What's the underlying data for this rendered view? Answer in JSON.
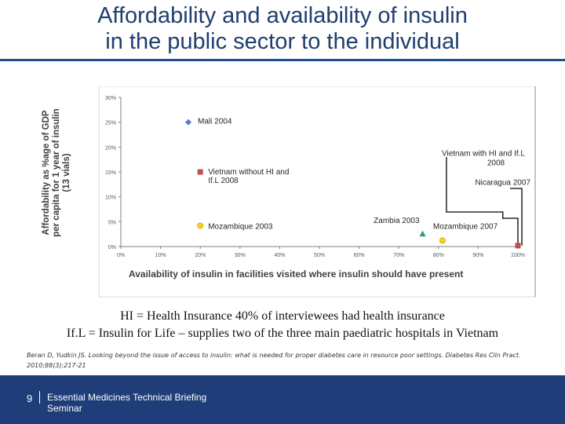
{
  "slide": {
    "title_line1": "Affordability and availability of insulin",
    "title_line2": "in the public sector to the individual",
    "note1": "HI = Health Insurance 40% of interviewees had health insurance",
    "note2": "If.L = Insulin for Life – supplies two of the three main paediatric hospitals in Vietnam",
    "citation_line1": "Beran D, Yudkin JS. Looking beyond the issue of access to insulin: what is needed for proper diabetes care in resource poor settings. Diabetes Res Clin Pract.",
    "citation_line2": "2010;88(3):217-21",
    "page_number": "9",
    "footer_line1": "Essential Medicines Technical Briefing",
    "footer_line2": "Seminar"
  },
  "colors": {
    "title": "#1f3f6e",
    "footer_bg": "#1f3d78",
    "mali": "#4f81bd",
    "vietnam_red": "#c0504d",
    "mozambique_yellow": "#ffd11a",
    "zambia_green": "#2e9e61"
  },
  "chart_data": {
    "type": "scatter",
    "title": "",
    "xlabel": "Availability of insulin in facilities visited where insulin should have present",
    "ylabel": [
      "Affordability as %age of GDP",
      "per capita for 1 year of insulin",
      "(13 vials)"
    ],
    "x_ticks": [
      "0%",
      "10%",
      "20%",
      "30%",
      "40%",
      "50%",
      "60%",
      "70%",
      "80%",
      "90%",
      "100%"
    ],
    "y_ticks": [
      "0%",
      "5%",
      "10%",
      "15%",
      "20%",
      "25%",
      "30%"
    ],
    "xlim": [
      0,
      100
    ],
    "ylim": [
      0,
      30
    ],
    "grid": false,
    "points": [
      {
        "name": "Mali 2004",
        "label_line1": "Mali 2004",
        "label_line2": "",
        "x": 17,
        "y": 25,
        "marker": "diamond",
        "color": "#4f81bd"
      },
      {
        "name": "Vietnam without HI and IfL 2008",
        "label_line1": "Vietnam without HI and",
        "label_line2": "If.L 2008",
        "x": 20,
        "y": 15,
        "marker": "square",
        "color": "#c0504d"
      },
      {
        "name": "Mozambique 2003",
        "label_line1": "Mozambique 2003",
        "label_line2": "",
        "x": 20,
        "y": 4.2,
        "marker": "circle",
        "color": "#ffd11a"
      },
      {
        "name": "Zambia 2003",
        "label_line1": "Zambia 2003",
        "label_line2": "",
        "x": 76,
        "y": 2.5,
        "marker": "triangle",
        "color": "#2e9e61"
      },
      {
        "name": "Mozambique 2007",
        "label_line1": "Mozambique 2007",
        "label_line2": "",
        "x": 81,
        "y": 1.2,
        "marker": "circle",
        "color": "#ffd11a"
      },
      {
        "name": "Nicaragua 2007",
        "label_line1": "Nicaragua 2007",
        "label_line2": "",
        "x": 100,
        "y": 0.2,
        "marker": "square",
        "color": "#c0504d"
      },
      {
        "name": "Vietnam with HI and IfL 2008",
        "label_line1": "Vietnam with HI and If.L",
        "label_line2": "2008",
        "x": 100,
        "y": 0.2,
        "marker": "square",
        "color": "#c0504d"
      }
    ]
  }
}
